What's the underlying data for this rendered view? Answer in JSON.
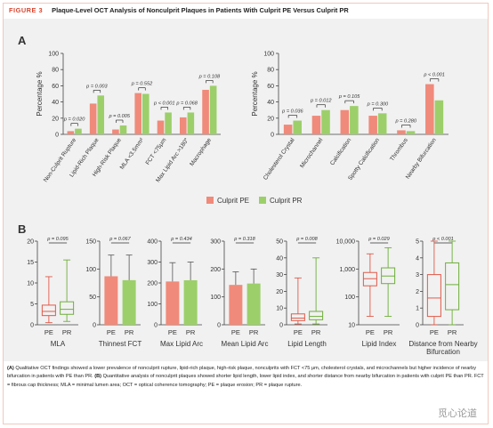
{
  "figure": {
    "number": "FIGURE 3",
    "title": "Plaque-Level OCT Analysis of Nonculprit Plaques in Patients With Culprit PE Versus Culprit PR"
  },
  "colors": {
    "pe": "#f08a7a",
    "pr": "#9ccf6a",
    "pe_dark": "#e05a4a",
    "pr_dark": "#6fae3a"
  },
  "panels": {
    "a": "A",
    "b": "B"
  },
  "legend": {
    "pe": "Culprit PE",
    "pr": "Culprit PR"
  },
  "caption": {
    "a_tag": "(A)",
    "a_text": " Qualitative OCT findings showed a lower prevalence of nonculprit rupture, lipid-rich plaque, high-risk plaque, nonculprits with FCT <75 μm, cholesterol crystals, and microchannels but higher incidence of nearby bifurcation in patients with PE than PR. ",
    "b_tag": "(B)",
    "b_text": " Quantitative analysis of nonculprit plaques showed shorter lipid length, lower lipid index, and shorter distance from nearby bifurcation in patients with culprit PE than PR. FCT = fibrous cap thickness; MLA = minimal lumen area; OCT = optical coherence tomography; PE = plaque erosion; PR = plaque rupture."
  },
  "watermark": "觅心论道",
  "chart_data": [
    {
      "type": "bar",
      "panel": "A",
      "ylabel": "Percentage %",
      "ylim": [
        0,
        100
      ],
      "yticks": [
        0,
        20,
        40,
        60,
        80,
        100
      ],
      "categories": [
        "Non-Culprit Rupture",
        "Lipid-Rich Plaque",
        "High-Risk Plaque",
        "MLA <3.5mm²",
        "FCT <75μm",
        "Max Lipid Arc >180°",
        "Macrophage"
      ],
      "series": [
        {
          "name": "Culprit PE",
          "values": [
            4,
            38,
            6,
            51,
            17,
            21,
            55
          ]
        },
        {
          "name": "Culprit PR",
          "values": [
            7,
            48,
            11,
            50,
            27,
            27,
            60
          ]
        }
      ],
      "pvalues": [
        "p = 0.020",
        "p = 0.003",
        "p = 0.005",
        "p = 0.552",
        "p < 0.001",
        "p = 0.068",
        "p = 0.108"
      ]
    },
    {
      "type": "bar",
      "panel": "A",
      "ylabel": "Percentage %",
      "ylim": [
        0,
        100
      ],
      "yticks": [
        0,
        20,
        40,
        60,
        80,
        100
      ],
      "categories": [
        "Cholesterol Crystal",
        "Microchannel",
        "Calcification",
        "Spotty Calcification",
        "Thrombus",
        "Nearby Bifurcation"
      ],
      "series": [
        {
          "name": "Culprit PE",
          "values": [
            12,
            23,
            30,
            23,
            5,
            62
          ]
        },
        {
          "name": "Culprit PR",
          "values": [
            17,
            30,
            35,
            26,
            4,
            42
          ]
        }
      ],
      "pvalues": [
        "p = 0.036",
        "p = 0.012",
        "p = 0.105",
        "p = 0.300",
        "p = 0.280",
        "p < 0.001"
      ]
    },
    {
      "type": "box",
      "panel": "B",
      "xlabel": "MLA",
      "ylim": [
        0,
        20
      ],
      "yticks": [
        0,
        5,
        10,
        15,
        20
      ],
      "categories": [
        "PE",
        "PR"
      ],
      "pvalue": "p = 0.095",
      "boxes": [
        {
          "min": 0.5,
          "q1": 2.2,
          "median": 3.2,
          "q3": 4.7,
          "max": 11.5
        },
        {
          "min": 0.8,
          "q1": 2.5,
          "median": 3.7,
          "q3": 5.5,
          "max": 15.5
        }
      ]
    },
    {
      "type": "bar",
      "panel": "B",
      "xlabel": "Thinnest FCT",
      "ylim": [
        0,
        150
      ],
      "yticks": [
        0,
        50,
        100,
        150
      ],
      "categories": [
        "PE",
        "PR"
      ],
      "pvalue": "p = 0.067",
      "values": [
        87,
        80
      ],
      "errors": [
        125,
        125
      ]
    },
    {
      "type": "bar",
      "panel": "B",
      "xlabel": "Max Lipid Arc",
      "ylim": [
        0,
        400
      ],
      "yticks": [
        0,
        100,
        200,
        300,
        400
      ],
      "categories": [
        "PE",
        "PR"
      ],
      "pvalue": "p = 0.434",
      "values": [
        207,
        213
      ],
      "errors": [
        297,
        300
      ]
    },
    {
      "type": "bar",
      "panel": "B",
      "xlabel": "Mean Lipid Arc",
      "ylim": [
        0,
        300
      ],
      "yticks": [
        0,
        100,
        200,
        300
      ],
      "categories": [
        "PE",
        "PR"
      ],
      "pvalue": "p = 0.318",
      "values": [
        143,
        148
      ],
      "errors": [
        190,
        200
      ]
    },
    {
      "type": "box",
      "panel": "B",
      "xlabel": "Lipid Length",
      "ylim": [
        0,
        50
      ],
      "yticks": [
        0,
        10,
        20,
        30,
        40,
        50
      ],
      "categories": [
        "PE",
        "PR"
      ],
      "pvalue": "p = 0.008",
      "boxes": [
        {
          "min": 0.5,
          "q1": 2.5,
          "median": 4,
          "q3": 6.5,
          "max": 28
        },
        {
          "min": 0.5,
          "q1": 3,
          "median": 5,
          "q3": 8,
          "max": 40
        }
      ]
    },
    {
      "type": "box",
      "panel": "B",
      "xlabel": "Lipid Index",
      "scale": "log",
      "ylim": [
        10,
        10000
      ],
      "yticks": [
        10,
        100,
        1000,
        10000
      ],
      "yticklabels": [
        "10",
        "100",
        "1,000",
        "10,000"
      ],
      "categories": [
        "PE",
        "PR"
      ],
      "pvalue": "p = 0.029",
      "boxes": [
        {
          "min": 20,
          "q1": 250,
          "median": 450,
          "q3": 750,
          "max": 3500
        },
        {
          "min": 20,
          "q1": 300,
          "median": 560,
          "q3": 1100,
          "max": 5800
        }
      ]
    },
    {
      "type": "box",
      "panel": "B",
      "xlabel": "Distance from Nearby Bifurcation",
      "ylim": [
        0,
        5
      ],
      "yticks": [
        0,
        1,
        2,
        3,
        4,
        5
      ],
      "categories": [
        "PE",
        "PR"
      ],
      "pvalue": "p < 0.001",
      "boxes": [
        {
          "min": 0,
          "q1": 0.5,
          "median": 1.6,
          "q3": 3.0,
          "max": 5
        },
        {
          "min": 0,
          "q1": 0.9,
          "median": 2.4,
          "q3": 3.7,
          "max": 5
        }
      ]
    }
  ]
}
